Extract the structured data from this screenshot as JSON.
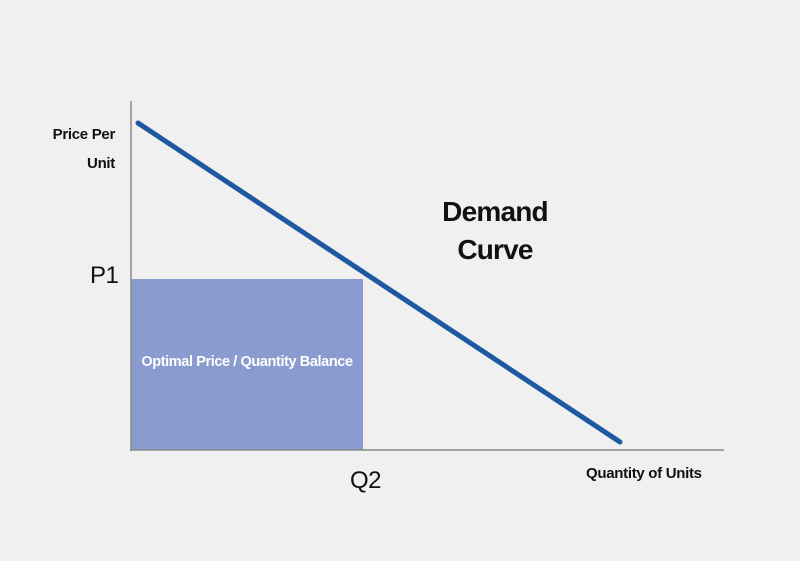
{
  "diagram": {
    "y_axis_label_line1": "Price Per",
    "y_axis_label_line2": "Unit",
    "x_axis_label": "Quantity of Units",
    "price_tick": "P1",
    "quantity_tick": "Q2",
    "curve_label_line1": "Demand",
    "curve_label_line2": "Curve",
    "region_label": "Optimal Price / Quantity Balance"
  },
  "colors": {
    "background": "#f0f0f0",
    "axis": "#8a8a8a",
    "demand_curve": "#1d58a0",
    "region_fill": "#8a9ccf"
  }
}
